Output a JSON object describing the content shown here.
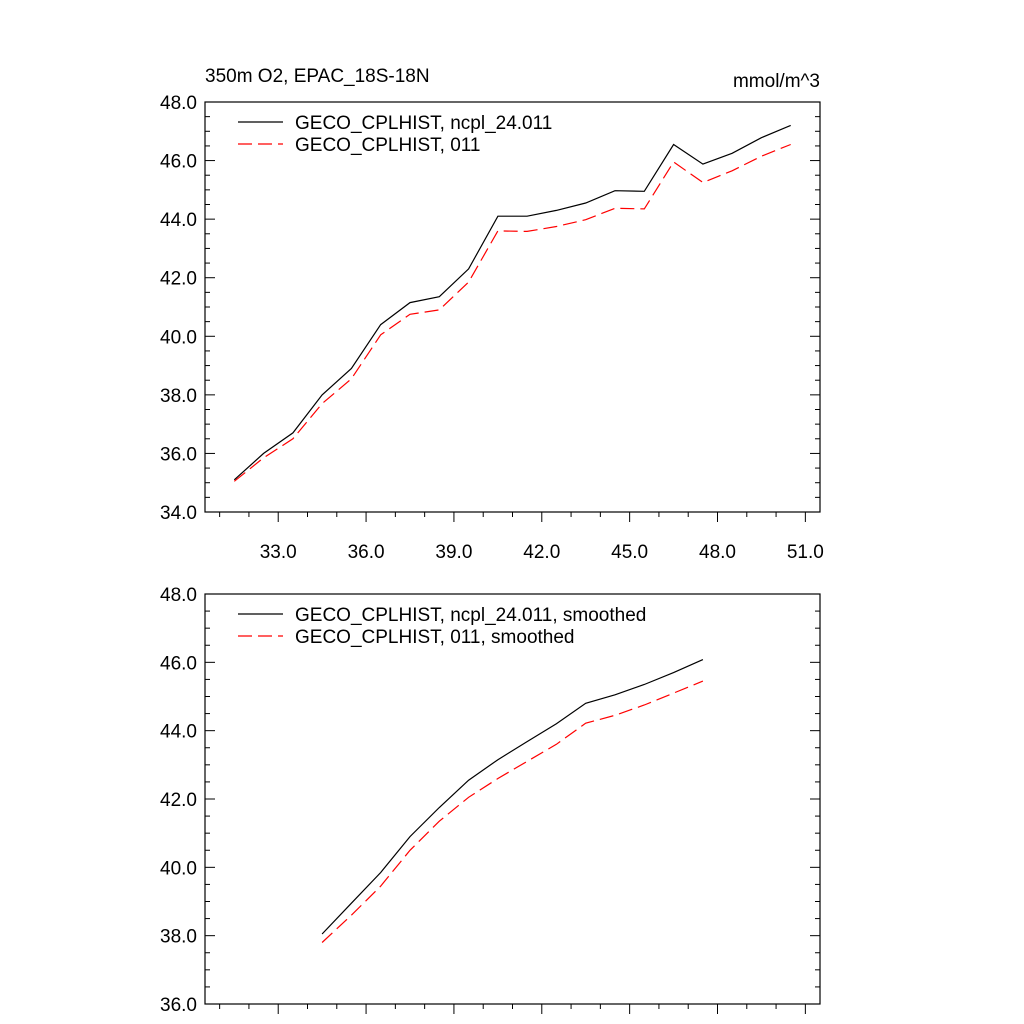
{
  "chart_data": [
    {
      "type": "line",
      "title": "350m O2, EPAC_18S-18N",
      "units": "mmol/m^3",
      "xlabel": "",
      "ylabel": "",
      "xlim": [
        30.5,
        51.5
      ],
      "ylim": [
        34.0,
        48.0
      ],
      "xticks": [
        33.0,
        36.0,
        39.0,
        42.0,
        45.0,
        48.0,
        51.0
      ],
      "xtick_labels": [
        "33.0",
        "36.0",
        "39.0",
        "42.0",
        "45.0",
        "48.0",
        "51.0"
      ],
      "yticks": [
        34.0,
        36.0,
        38.0,
        40.0,
        42.0,
        44.0,
        46.0,
        48.0
      ],
      "ytick_labels": [
        "34.0",
        "36.0",
        "38.0",
        "40.0",
        "42.0",
        "44.0",
        "46.0",
        "48.0"
      ],
      "legend_position": "top-left",
      "grid": false,
      "x": [
        31.5,
        32.5,
        33.5,
        34.5,
        35.5,
        36.5,
        37.5,
        38.5,
        39.5,
        40.5,
        41.5,
        42.5,
        43.5,
        44.5,
        45.5,
        46.5,
        47.5,
        48.5,
        49.5,
        50.5
      ],
      "series": [
        {
          "name": "GECO_CPLHIST, ncpl_24.011",
          "color": "#000000",
          "dash": "solid",
          "values": [
            35.1,
            36.0,
            36.7,
            38.0,
            38.9,
            40.4,
            41.15,
            41.35,
            42.3,
            44.1,
            44.1,
            44.3,
            44.55,
            44.97,
            44.95,
            46.55,
            45.88,
            46.25,
            46.78,
            47.2
          ]
        },
        {
          "name": "GECO_CPLHIST, 011",
          "color": "#ff0000",
          "dash": "dashed",
          "values": [
            35.05,
            35.85,
            36.5,
            37.7,
            38.55,
            40.05,
            40.75,
            40.9,
            41.85,
            43.6,
            43.58,
            43.75,
            43.98,
            44.37,
            44.35,
            45.95,
            45.25,
            45.65,
            46.15,
            46.55
          ]
        }
      ]
    },
    {
      "type": "line",
      "title": "",
      "xlabel": "",
      "ylabel": "",
      "xlim": [
        30.5,
        51.5
      ],
      "ylim": [
        36.0,
        48.0
      ],
      "xticks": [
        33.0,
        36.0,
        39.0,
        42.0,
        45.0,
        48.0,
        51.0
      ],
      "yticks": [
        36.0,
        38.0,
        40.0,
        42.0,
        44.0,
        46.0,
        48.0
      ],
      "ytick_labels": [
        "36.0",
        "38.0",
        "40.0",
        "42.0",
        "44.0",
        "46.0",
        "48.0"
      ],
      "legend_position": "top-left",
      "grid": false,
      "x": [
        34.5,
        35.5,
        36.5,
        37.5,
        38.5,
        39.5,
        40.5,
        41.5,
        42.5,
        43.5,
        44.5,
        45.5,
        46.5,
        47.5
      ],
      "series": [
        {
          "name": "GECO_CPLHIST, ncpl_24.011, smoothed",
          "color": "#000000",
          "dash": "solid",
          "values": [
            38.05,
            38.95,
            39.85,
            40.9,
            41.75,
            42.55,
            43.15,
            43.68,
            44.2,
            44.8,
            45.05,
            45.35,
            45.7,
            46.08
          ]
        },
        {
          "name": "GECO_CPLHIST, 011, smoothed",
          "color": "#ff0000",
          "dash": "dashed",
          "values": [
            37.8,
            38.6,
            39.45,
            40.5,
            41.35,
            42.05,
            42.6,
            43.1,
            43.6,
            44.22,
            44.45,
            44.75,
            45.1,
            45.45
          ]
        }
      ]
    }
  ]
}
